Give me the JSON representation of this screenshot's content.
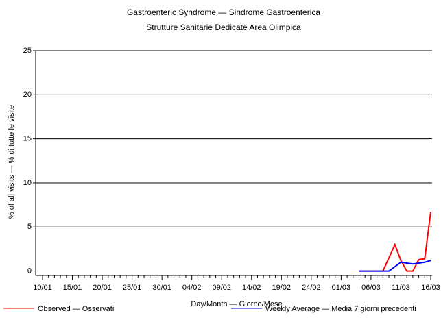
{
  "chart_data": {
    "type": "line",
    "title": "Gastroenteric Syndrome — Sindrome Gastroenterica",
    "subtitle": "Strutture Sanitarie Dedicate Area Olimpica",
    "x_label": "Day/Month — Giorno/Mese",
    "y_label": "% of all visits — % di tutte le visite",
    "categories": [
      "10/01",
      null,
      null,
      null,
      null,
      "15/01",
      null,
      null,
      null,
      null,
      "20/01",
      null,
      null,
      null,
      null,
      "25/01",
      null,
      null,
      null,
      null,
      "30/01",
      null,
      null,
      null,
      null,
      "04/02",
      null,
      null,
      null,
      null,
      "09/02",
      null,
      null,
      null,
      null,
      "14/02",
      null,
      null,
      null,
      null,
      "19/02",
      null,
      null,
      null,
      null,
      "24/02",
      null,
      null,
      null,
      null,
      "01/03",
      null,
      null,
      null,
      null,
      "06/03",
      null,
      null,
      null,
      null,
      "11/03",
      null,
      null,
      null,
      null,
      "16/03"
    ],
    "series": [
      {
        "name": "Observed — Osservati",
        "color": "#ff0000",
        "values": [
          null,
          null,
          null,
          null,
          null,
          null,
          null,
          null,
          null,
          null,
          null,
          null,
          null,
          null,
          null,
          null,
          null,
          null,
          null,
          null,
          null,
          null,
          null,
          null,
          null,
          null,
          null,
          null,
          null,
          null,
          null,
          null,
          null,
          null,
          null,
          null,
          null,
          null,
          null,
          null,
          null,
          null,
          null,
          null,
          null,
          null,
          null,
          null,
          null,
          null,
          null,
          null,
          null,
          0,
          0,
          0,
          0,
          0,
          1.5,
          3.0,
          1.2,
          0,
          0,
          1.3,
          1.4,
          6.7
        ]
      },
      {
        "name": "Weekly Average — Media 7 giorni precedenti",
        "color": "#0000ff",
        "values": [
          null,
          null,
          null,
          null,
          null,
          null,
          null,
          null,
          null,
          null,
          null,
          null,
          null,
          null,
          null,
          null,
          null,
          null,
          null,
          null,
          null,
          null,
          null,
          null,
          null,
          null,
          null,
          null,
          null,
          null,
          null,
          null,
          null,
          null,
          null,
          null,
          null,
          null,
          null,
          null,
          null,
          null,
          null,
          null,
          null,
          null,
          null,
          null,
          null,
          null,
          null,
          null,
          null,
          0,
          0,
          0,
          0,
          0,
          0,
          0.5,
          1.0,
          0.9,
          0.8,
          0.9,
          1.0,
          1.2
        ]
      }
    ],
    "ylim": [
      -0.5,
      25
    ],
    "yticks": [
      0,
      5,
      10,
      15,
      20,
      25
    ],
    "grid": true
  }
}
